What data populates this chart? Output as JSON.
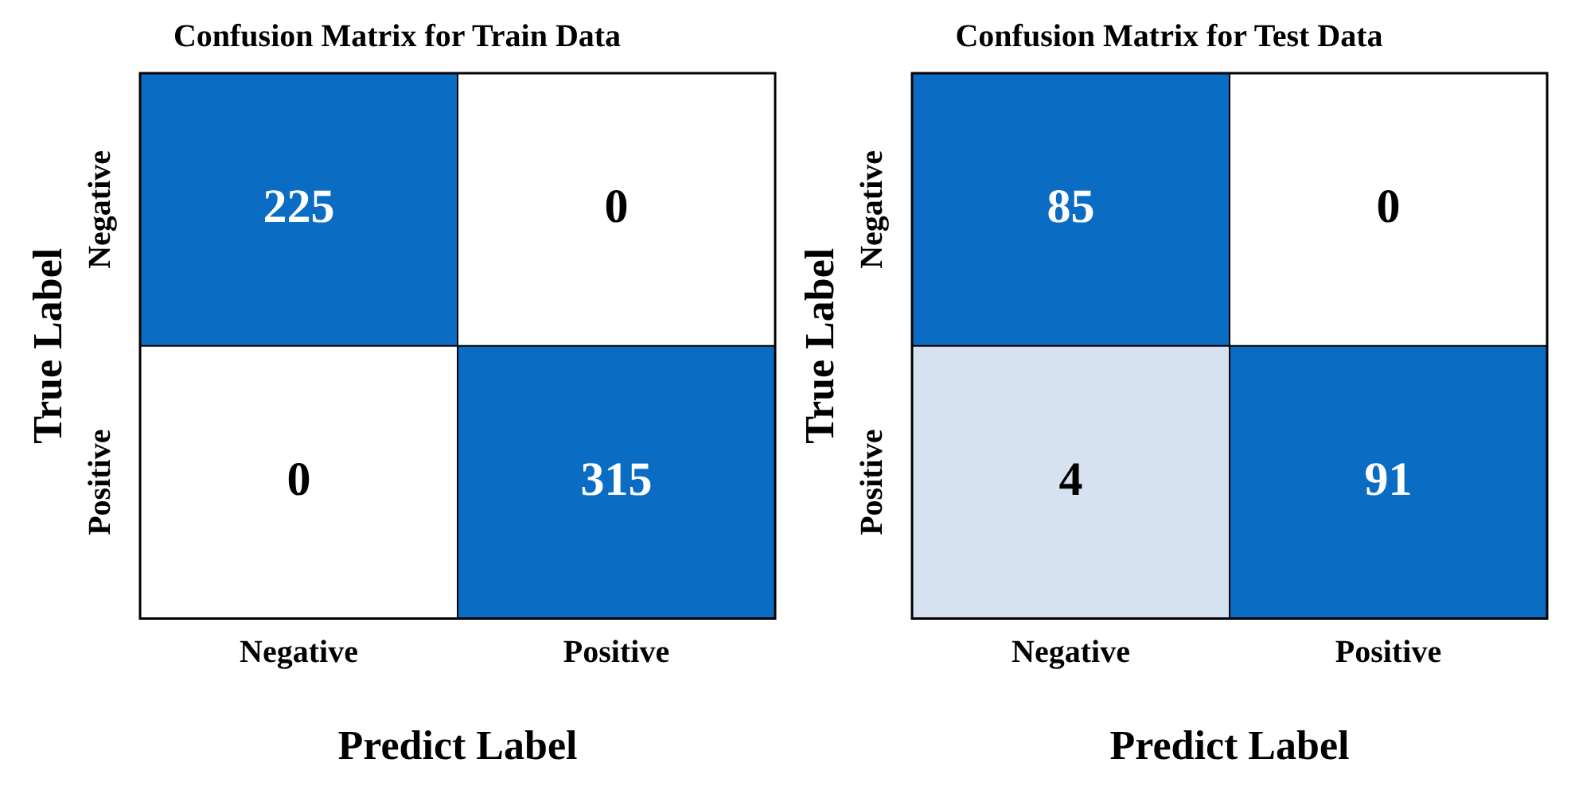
{
  "chart_data": [
    {
      "type": "heatmap",
      "title": "Confusion Matrix for Train Data",
      "xlabel": "Predict Label",
      "ylabel": "True Label",
      "categories": [
        "Negative",
        "Positive"
      ],
      "y_categories": [
        "Negative",
        "Positive"
      ],
      "cells": [
        [
          225,
          0
        ],
        [
          0,
          315
        ]
      ],
      "data_labels": true,
      "colors": [
        [
          "#0b6cc4",
          "#ffffff"
        ],
        [
          "#ffffff",
          "#0b6cc4"
        ]
      ]
    },
    {
      "type": "heatmap",
      "title": "Confusion Matrix for Test Data",
      "xlabel": "Predict Label",
      "ylabel": "True Label",
      "categories": [
        "Negative",
        "Positive"
      ],
      "y_categories": [
        "Negative",
        "Positive"
      ],
      "cells": [
        [
          85,
          0
        ],
        [
          4,
          91
        ]
      ],
      "data_labels": true,
      "colors": [
        [
          "#0b6cc4",
          "#ffffff"
        ],
        [
          "#d7e2f1",
          "#0b6cc4"
        ]
      ]
    }
  ]
}
